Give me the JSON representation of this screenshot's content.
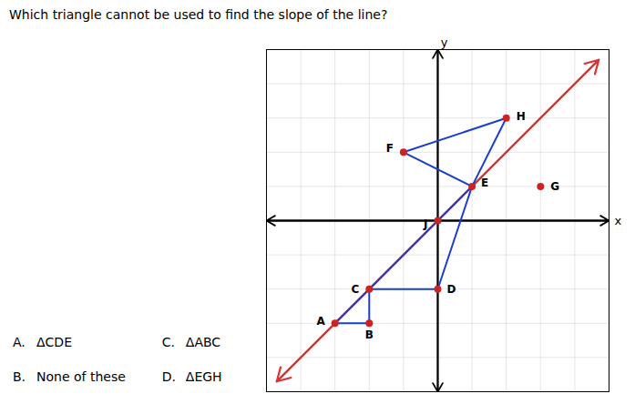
{
  "chart_data": {
    "type": "scatter",
    "title": "Which triangle cannot be used to find the slope of the line?",
    "xlabel": "x",
    "ylabel": "y",
    "xlim": [
      -5,
      5
    ],
    "ylim": [
      -5,
      5
    ],
    "xticks": [
      -5,
      -4,
      -3,
      -2,
      -1,
      0,
      1,
      2,
      3,
      4,
      5
    ],
    "yticks": [
      -5,
      -4,
      -3,
      -2,
      -1,
      0,
      1,
      2,
      3,
      4,
      5
    ],
    "grid": true,
    "tick_labels": false,
    "points": {
      "color": "#cc2222",
      "labels": [
        "A",
        "B",
        "C",
        "D",
        "E",
        "F",
        "G",
        "H",
        "J"
      ],
      "x": [
        -3,
        -2,
        -2,
        0,
        1,
        -1,
        3,
        2,
        0
      ],
      "y": [
        -3,
        -3,
        -2,
        -2,
        1,
        2,
        1,
        3,
        0
      ]
    },
    "line": {
      "color": "#e03030",
      "x": [
        -4.7,
        4.7
      ],
      "y": [
        -4.7,
        4.7
      ]
    },
    "triangles": {
      "color": "#1a3fcf",
      "vertices": [
        [
          "A",
          "B",
          "C"
        ],
        [
          "C",
          "D",
          "E"
        ],
        [
          "F",
          "E",
          "H"
        ]
      ]
    },
    "annotations": [
      {
        "label": "A.",
        "text": "ΔCDE"
      },
      {
        "label": "B.",
        "text": "None of these"
      },
      {
        "label": "C.",
        "text": "ΔABC"
      },
      {
        "label": "D.",
        "text": "ΔEGH"
      }
    ]
  }
}
